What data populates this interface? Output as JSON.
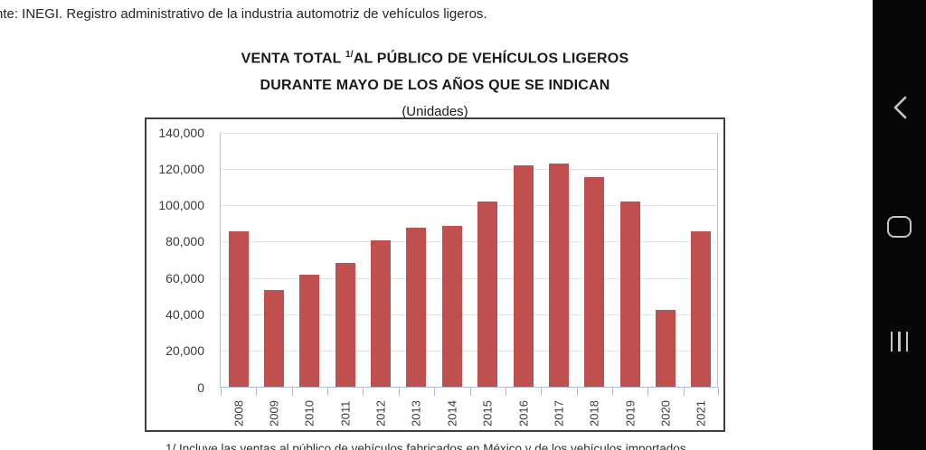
{
  "source_note": "nte: INEGI. Registro administrativo de la industria automotriz de vehículos ligeros.",
  "title": {
    "line1_prefix": "VENTA TOTAL ",
    "line1_sup": "1/",
    "line1_suffix": "AL PÚBLICO DE VEHÍCULOS LIGEROS",
    "line2": "DURANTE MAYO DE LOS AÑOS QUE SE INDICAN",
    "units": "(Unidades)"
  },
  "chart_data": {
    "type": "bar",
    "title": "VENTA TOTAL 1/ AL PÚBLICO DE VEHÍCULOS LIGEROS DURANTE MAYO DE LOS AÑOS QUE SE INDICAN",
    "subtitle": "(Unidades)",
    "categories": [
      "2008",
      "2009",
      "2010",
      "2011",
      "2012",
      "2013",
      "2014",
      "2015",
      "2016",
      "2017",
      "2018",
      "2019",
      "2020",
      "2021"
    ],
    "values": [
      85500,
      53000,
      61500,
      68000,
      80300,
      87500,
      88200,
      102000,
      121500,
      122600,
      115000,
      101800,
      42000,
      85500
    ],
    "xlabel": "",
    "ylabel": "",
    "ylim": [
      0,
      140000
    ],
    "ytick_step": 20000,
    "ytick_labels": [
      "0",
      "20,000",
      "40,000",
      "60,000",
      "80,000",
      "100,000",
      "120,000",
      "140,000"
    ],
    "grid": true,
    "legend": false,
    "bar_color": "#C0504D",
    "axis_line_color": "#aebcd9",
    "grid_color": "#e4e4e4"
  },
  "footnote": "1/ Incluye las ventas al público de vehículos fabricados en México y de los vehículos importados.",
  "navbar": {
    "back_label": "back",
    "home_label": "home",
    "recents_label": "recents"
  }
}
